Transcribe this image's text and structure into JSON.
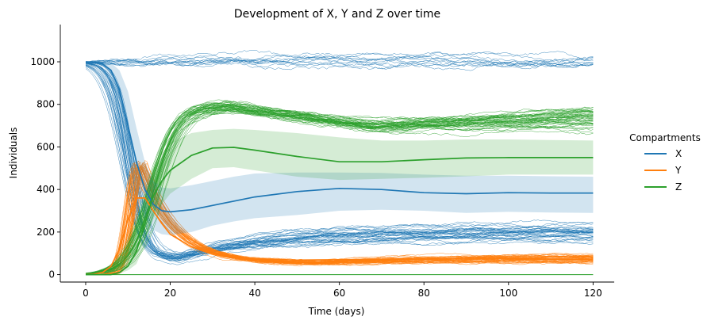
{
  "chart_data": {
    "type": "line",
    "title": "Development of X, Y and Z over time",
    "xlabel": "Time (days)",
    "ylabel": "Individuals",
    "xlim": [
      -6,
      125
    ],
    "ylim": [
      -35,
      1175
    ],
    "xticks": [
      0,
      20,
      40,
      60,
      80,
      100,
      120
    ],
    "yticks": [
      0,
      200,
      400,
      600,
      800,
      1000
    ],
    "grid": false,
    "legend": {
      "title": "Compartments",
      "placement": "right",
      "entries": [
        {
          "name": "X",
          "color": "#1f77b4"
        },
        {
          "name": "Y",
          "color": "#ff7f0e"
        },
        {
          "name": "Z",
          "color": "#2ca02c"
        }
      ]
    },
    "x": [
      0,
      2,
      4,
      6,
      8,
      10,
      12,
      14,
      16,
      18,
      20,
      25,
      30,
      35,
      40,
      50,
      60,
      70,
      80,
      90,
      100,
      110,
      120
    ],
    "series": [
      {
        "name": "X",
        "color": "#1f77b4",
        "mean": [
          1000,
          998,
          990,
          960,
          870,
          700,
          530,
          400,
          330,
          300,
          295,
          305,
          325,
          345,
          365,
          390,
          405,
          400,
          385,
          380,
          385,
          383,
          383
        ],
        "band_upper": [
          1000,
          1001,
          1000,
          995,
          960,
          860,
          690,
          530,
          440,
          410,
          405,
          420,
          440,
          460,
          475,
          480,
          480,
          478,
          470,
          465,
          465,
          462,
          460
        ],
        "band_lower": [
          1000,
          996,
          982,
          925,
          780,
          540,
          370,
          270,
          210,
          190,
          185,
          200,
          230,
          250,
          265,
          280,
          300,
          305,
          300,
          290,
          295,
          292,
          290
        ]
      },
      {
        "name": "Y",
        "color": "#ff7f0e",
        "mean": [
          0,
          2,
          10,
          40,
          120,
          260,
          360,
          360,
          300,
          240,
          190,
          130,
          100,
          85,
          75,
          68,
          70,
          72,
          75,
          75,
          74,
          73,
          72
        ]
      },
      {
        "name": "Z",
        "color": "#2ca02c",
        "mean": [
          0,
          0,
          0,
          0,
          10,
          40,
          110,
          240,
          370,
          440,
          490,
          560,
          595,
          598,
          585,
          555,
          530,
          530,
          540,
          548,
          550,
          550,
          550
        ],
        "band_upper": [
          0,
          0,
          0,
          0,
          15,
          60,
          170,
          340,
          480,
          570,
          620,
          665,
          680,
          685,
          680,
          665,
          645,
          630,
          630,
          635,
          635,
          632,
          630
        ],
        "band_lower": [
          0,
          0,
          0,
          0,
          5,
          20,
          50,
          140,
          260,
          330,
          380,
          450,
          500,
          505,
          490,
          460,
          445,
          450,
          455,
          462,
          470,
          470,
          470
        ]
      }
    ],
    "realizations": {
      "X_survivors": {
        "color": "#1f77b4",
        "count": 12,
        "start": 1000,
        "level": 1000,
        "spread": 55
      },
      "X_declining": {
        "color": "#1f77b4",
        "count": 34,
        "start": 1000,
        "min": 80,
        "min_time": 22,
        "level": 205,
        "spread": 38
      },
      "Y_epidemic": {
        "color": "#ff7f0e",
        "count": 46,
        "peak": 510,
        "peak_time": 13,
        "min": 55,
        "min_time": 55,
        "level": 80,
        "spread": 16
      },
      "Z_epidemic": {
        "color": "#2ca02c",
        "count": 46,
        "level": 790,
        "level_time": 33,
        "min": 700,
        "min_time": 68,
        "end": 745,
        "spread": 50
      },
      "Z_zero_line": {
        "color": "#2ca02c",
        "value": 0
      }
    }
  }
}
